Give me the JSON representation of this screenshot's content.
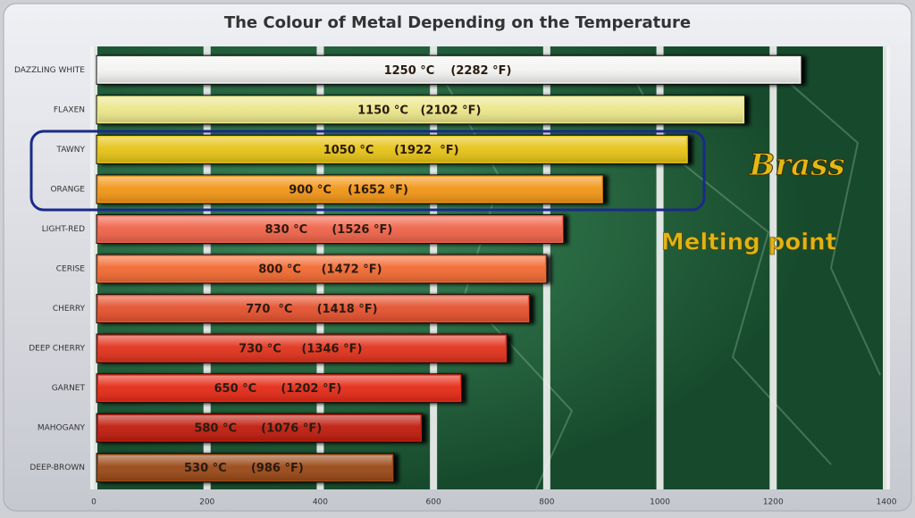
{
  "chart_data": {
    "type": "bar",
    "orientation": "horizontal",
    "title": "The Colour of Metal Depending on the Temperature",
    "categories": [
      "DAZZLING WHITE",
      "FLAXEN",
      "TAWNY",
      "ORANGE",
      "LIGHT-RED",
      "CERISE",
      "CHERRY",
      "DEEP CHERRY",
      "GARNET",
      "MAHOGANY",
      "DEEP-BROWN"
    ],
    "values": [
      1250,
      1150,
      1050,
      900,
      830,
      800,
      770,
      730,
      650,
      580,
      530
    ],
    "value_labels": [
      "1250 °C    (2282 °F)",
      "1150 °C   (2102 °F)",
      "1050 °C     (1922  °F)",
      "900 °C    (1652 °F)",
      "830 °C      (1526 °F)",
      "800 °C     (1472 °F)",
      "770  °C      (1418 °F)",
      "730 °C     (1346 °F)",
      "650 °C      (1202 °F)",
      "580 °C      (1076 °F)",
      "530 °C      (986 °F)"
    ],
    "colors": [
      "#f3f3f1",
      "#ebe68a",
      "#e6c312",
      "#f29614",
      "#f0634a",
      "#f26b30",
      "#e4512e",
      "#e2321c",
      "#e52b18",
      "#bf1d0c",
      "#9a4a14"
    ],
    "xlim": [
      0,
      1400
    ],
    "xticks": [
      0,
      200,
      400,
      600,
      800,
      1000,
      1200,
      1400
    ],
    "grid": true,
    "annotations": [
      "Brass",
      "Melting point"
    ]
  }
}
